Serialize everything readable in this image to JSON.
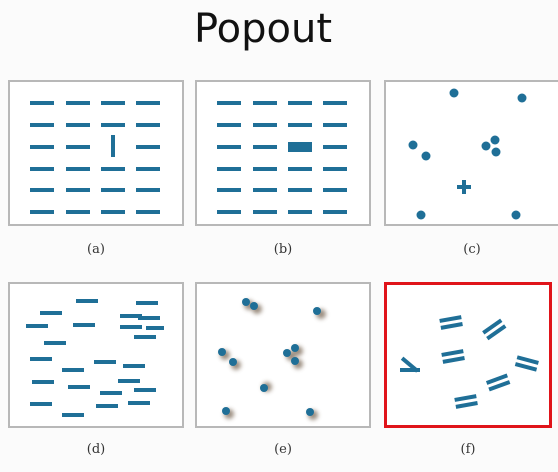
{
  "title": "Popout",
  "accent_color": "#1f6f97",
  "highlight_color": "#e0141a",
  "panels": [
    {
      "caption": "(a)",
      "feature": "orientation"
    },
    {
      "caption": "(b)",
      "feature": "size"
    },
    {
      "caption": "(c)",
      "feature": "shape"
    },
    {
      "caption": "(d)",
      "feature": "length"
    },
    {
      "caption": "(e)",
      "feature": "shading"
    },
    {
      "caption": "(f)",
      "feature": "enclosure-orientation",
      "selected": true
    }
  ]
}
